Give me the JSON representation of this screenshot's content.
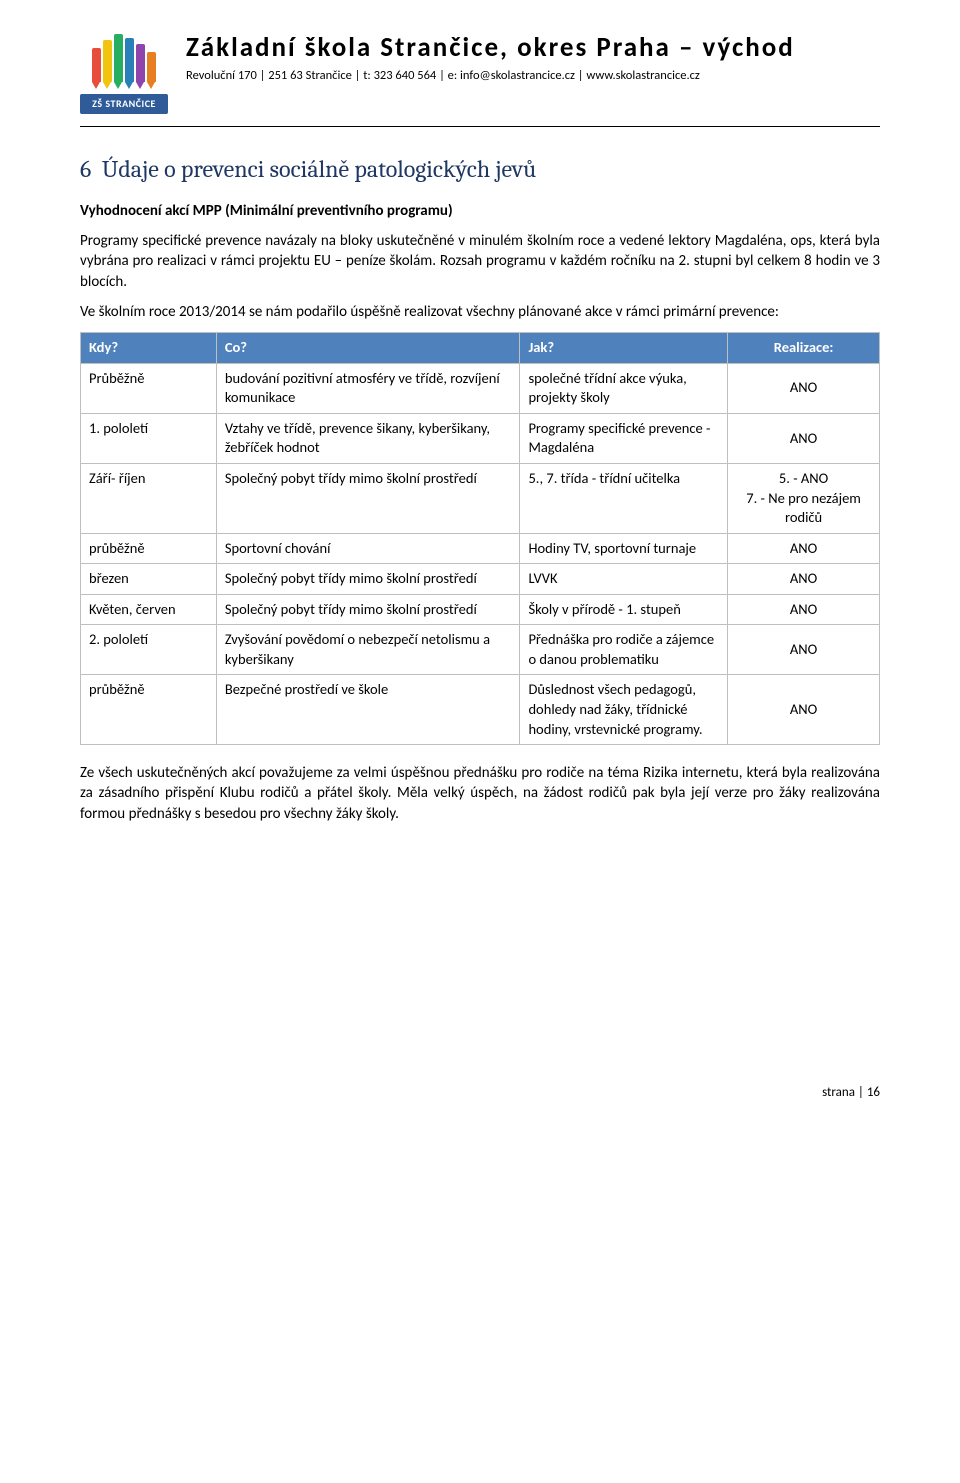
{
  "header": {
    "logo_badge": "ZŠ STRANČICE",
    "school_title": "Základní škola Strančice, okres Praha – východ",
    "contact_line": "Revoluční 170 | 251 63 Strančice | t: 323 640 564 | e: info@skolastrancice.cz | www.skolastrancice.cz"
  },
  "section": {
    "number": "6",
    "title": "Údaje o prevenci sociálně patologických jevů"
  },
  "sub_heading": "Vyhodnocení akcí MPP (Minimální preventivního programu)",
  "para1": "Programy specifické prevence navázaly na bloky uskutečněné v minulém školním roce a vedené lektory Magdaléna, ops, která byla vybrána pro realizaci v rámci projektu EU – peníze školám. Rozsah programu v každém ročníku na 2. stupni byl celkem 8 hodin ve 3 blocích.",
  "para2": "Ve školním roce 2013/2014 se nám podařilo úspěšně realizovat všechny plánované akce v rámci primární prevence:",
  "table": {
    "headers": {
      "kdy": "Kdy?",
      "co": "Co?",
      "jak": "Jak?",
      "real": "Realizace:"
    },
    "rows": [
      {
        "kdy": "Průběžně",
        "co": "budování pozitivní atmosféry ve třídě, rozvíjení komunikace",
        "jak": "společné třídní akce výuka, projekty školy",
        "real": "ANO"
      },
      {
        "kdy": "1. pololetí",
        "co": "Vztahy ve třídě, prevence šikany, kyberšikany, žebříček hodnot",
        "jak": "Programy specifické prevence - Magdaléna",
        "real": "ANO"
      },
      {
        "kdy": "Září- říjen",
        "co": "Společný pobyt třídy mimo školní prostředí",
        "jak": "5., 7. třída - třídní učitelka",
        "real": "5. - ANO\n7. - Ne pro nezájem rodičů"
      },
      {
        "kdy": "průběžně",
        "co": "Sportovní chování",
        "jak": "Hodiny TV, sportovní turnaje",
        "real": "ANO"
      },
      {
        "kdy": "březen",
        "co": "Společný pobyt třídy mimo školní prostředí",
        "jak": "LVVK",
        "real": "ANO"
      },
      {
        "kdy": "Květen, červen",
        "co": "Společný pobyt třídy mimo školní prostředí",
        "jak": "Školy v přírodě - 1. stupeň",
        "real": "ANO"
      },
      {
        "kdy": "2. pololetí",
        "co": "Zvyšování povědomí o nebezpečí netolismu a kyberšikany",
        "jak": "Přednáška pro rodiče a zájemce o danou problematiku",
        "real": "ANO"
      },
      {
        "kdy": "průběžně",
        "co": "Bezpečné prostředí ve škole",
        "jak": "Důslednost všech pedagogů, dohledy nad žáky, třídnické hodiny, vrstevnické programy.",
        "real": "ANO"
      }
    ]
  },
  "para3": "Ze všech uskutečněných akcí považujeme za velmi úspěšnou přednášku pro rodiče na téma Rizika internetu, která byla realizována za zásadního přispění Klubu rodičů a přátel školy. Měla velký úspěch, na žádost rodičů pak byla její verze pro žáky realizována formou přednášky s besedou pro všechny žáky školy.",
  "footer": "strana | 16"
}
